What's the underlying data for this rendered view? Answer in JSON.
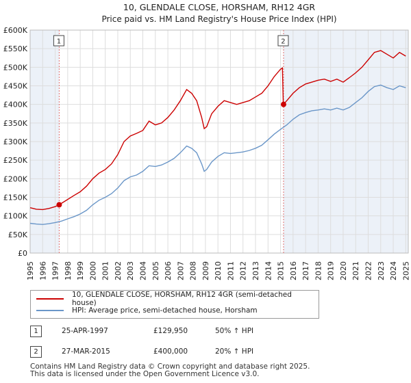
{
  "chart_data": {
    "type": "line",
    "title": "10, GLENDALE CLOSE, HORSHAM, RH12 4GR",
    "subtitle": "Price paid vs. HM Land Registry's House Price Index (HPI)",
    "xlim": [
      1995,
      2025.2
    ],
    "ylim": [
      0,
      600000
    ],
    "x_ticks": [
      "1995",
      "1996",
      "1997",
      "1998",
      "1999",
      "2000",
      "2001",
      "2002",
      "2003",
      "2004",
      "2005",
      "2006",
      "2007",
      "2008",
      "2009",
      "2010",
      "2011",
      "2012",
      "2013",
      "2014",
      "2015",
      "2016",
      "2017",
      "2018",
      "2019",
      "2020",
      "2021",
      "2022",
      "2023",
      "2024",
      "2025"
    ],
    "y_ticks": [
      {
        "value": 0,
        "label": "£0"
      },
      {
        "value": 50000,
        "label": "£50K"
      },
      {
        "value": 100000,
        "label": "£100K"
      },
      {
        "value": 150000,
        "label": "£150K"
      },
      {
        "value": 200000,
        "label": "£200K"
      },
      {
        "value": 250000,
        "label": "£250K"
      },
      {
        "value": 300000,
        "label": "£300K"
      },
      {
        "value": 350000,
        "label": "£350K"
      },
      {
        "value": 400000,
        "label": "£400K"
      },
      {
        "value": 450000,
        "label": "£450K"
      },
      {
        "value": 500000,
        "label": "£500K"
      },
      {
        "value": 550000,
        "label": "£550K"
      },
      {
        "value": 600000,
        "label": "£600K"
      }
    ],
    "grid": true,
    "series": [
      {
        "name": "10, GLENDALE CLOSE, HORSHAM, RH12 4GR (semi-detached house)",
        "color": "#cc0000",
        "points": [
          [
            1995.0,
            122000
          ],
          [
            1995.5,
            118000
          ],
          [
            1996.0,
            117000
          ],
          [
            1996.5,
            120000
          ],
          [
            1997.0,
            125000
          ],
          [
            1997.32,
            129950
          ],
          [
            1997.8,
            140000
          ],
          [
            1998.5,
            155000
          ],
          [
            1999.0,
            165000
          ],
          [
            1999.5,
            180000
          ],
          [
            2000.0,
            200000
          ],
          [
            2000.5,
            215000
          ],
          [
            2001.0,
            225000
          ],
          [
            2001.5,
            240000
          ],
          [
            2002.0,
            265000
          ],
          [
            2002.5,
            300000
          ],
          [
            2003.0,
            315000
          ],
          [
            2003.5,
            322000
          ],
          [
            2004.0,
            330000
          ],
          [
            2004.5,
            355000
          ],
          [
            2005.0,
            345000
          ],
          [
            2005.5,
            350000
          ],
          [
            2006.0,
            365000
          ],
          [
            2006.5,
            385000
          ],
          [
            2007.0,
            410000
          ],
          [
            2007.5,
            440000
          ],
          [
            2007.9,
            430000
          ],
          [
            2008.3,
            410000
          ],
          [
            2008.7,
            365000
          ],
          [
            2008.9,
            335000
          ],
          [
            2009.1,
            340000
          ],
          [
            2009.5,
            375000
          ],
          [
            2010.0,
            395000
          ],
          [
            2010.5,
            410000
          ],
          [
            2011.0,
            405000
          ],
          [
            2011.5,
            400000
          ],
          [
            2012.0,
            405000
          ],
          [
            2012.5,
            410000
          ],
          [
            2013.0,
            420000
          ],
          [
            2013.5,
            430000
          ],
          [
            2014.0,
            450000
          ],
          [
            2014.5,
            475000
          ],
          [
            2015.0,
            495000
          ],
          [
            2015.15,
            498000
          ],
          [
            2015.22,
            400000
          ],
          [
            2015.5,
            410000
          ],
          [
            2016.0,
            430000
          ],
          [
            2016.5,
            445000
          ],
          [
            2017.0,
            455000
          ],
          [
            2017.5,
            460000
          ],
          [
            2018.0,
            465000
          ],
          [
            2018.5,
            468000
          ],
          [
            2019.0,
            462000
          ],
          [
            2019.5,
            468000
          ],
          [
            2020.0,
            460000
          ],
          [
            2020.5,
            472000
          ],
          [
            2021.0,
            485000
          ],
          [
            2021.5,
            500000
          ],
          [
            2022.0,
            520000
          ],
          [
            2022.5,
            540000
          ],
          [
            2023.0,
            545000
          ],
          [
            2023.5,
            535000
          ],
          [
            2024.0,
            525000
          ],
          [
            2024.5,
            540000
          ],
          [
            2025.0,
            530000
          ]
        ]
      },
      {
        "name": "HPI: Average price, semi-detached house, Horsham",
        "color": "#6a96c8",
        "points": [
          [
            1995.0,
            80000
          ],
          [
            1995.5,
            78000
          ],
          [
            1996.0,
            77000
          ],
          [
            1996.5,
            79000
          ],
          [
            1997.0,
            82000
          ],
          [
            1997.5,
            86000
          ],
          [
            1998.0,
            92000
          ],
          [
            1998.5,
            98000
          ],
          [
            1999.0,
            105000
          ],
          [
            1999.5,
            115000
          ],
          [
            2000.0,
            130000
          ],
          [
            2000.5,
            142000
          ],
          [
            2001.0,
            150000
          ],
          [
            2001.5,
            160000
          ],
          [
            2002.0,
            175000
          ],
          [
            2002.5,
            195000
          ],
          [
            2003.0,
            205000
          ],
          [
            2003.5,
            210000
          ],
          [
            2004.0,
            220000
          ],
          [
            2004.5,
            235000
          ],
          [
            2005.0,
            233000
          ],
          [
            2005.5,
            237000
          ],
          [
            2006.0,
            245000
          ],
          [
            2006.5,
            255000
          ],
          [
            2007.0,
            270000
          ],
          [
            2007.5,
            288000
          ],
          [
            2007.9,
            282000
          ],
          [
            2008.3,
            270000
          ],
          [
            2008.7,
            240000
          ],
          [
            2008.9,
            220000
          ],
          [
            2009.1,
            225000
          ],
          [
            2009.5,
            245000
          ],
          [
            2010.0,
            260000
          ],
          [
            2010.5,
            270000
          ],
          [
            2011.0,
            268000
          ],
          [
            2011.5,
            270000
          ],
          [
            2012.0,
            272000
          ],
          [
            2012.5,
            276000
          ],
          [
            2013.0,
            282000
          ],
          [
            2013.5,
            290000
          ],
          [
            2014.0,
            305000
          ],
          [
            2014.5,
            320000
          ],
          [
            2015.0,
            333000
          ],
          [
            2015.5,
            345000
          ],
          [
            2016.0,
            360000
          ],
          [
            2016.5,
            372000
          ],
          [
            2017.0,
            378000
          ],
          [
            2017.5,
            383000
          ],
          [
            2018.0,
            385000
          ],
          [
            2018.5,
            388000
          ],
          [
            2019.0,
            385000
          ],
          [
            2019.5,
            390000
          ],
          [
            2020.0,
            385000
          ],
          [
            2020.5,
            392000
          ],
          [
            2021.0,
            405000
          ],
          [
            2021.5,
            418000
          ],
          [
            2022.0,
            435000
          ],
          [
            2022.5,
            448000
          ],
          [
            2023.0,
            452000
          ],
          [
            2023.5,
            445000
          ],
          [
            2024.0,
            440000
          ],
          [
            2024.5,
            450000
          ],
          [
            2025.0,
            445000
          ]
        ]
      }
    ],
    "markers": [
      {
        "label": "1",
        "x": 1997.32,
        "y": 129950
      },
      {
        "label": "2",
        "x": 2015.24,
        "y": 400000
      }
    ],
    "shaded_regions": [
      [
        1995,
        1997.32
      ],
      [
        2015.24,
        2025.2
      ]
    ],
    "legend_position": "bottom"
  },
  "transactions": [
    {
      "num": "1",
      "date": "25-APR-1997",
      "price": "£129,950",
      "hpi": "50% ↑ HPI"
    },
    {
      "num": "2",
      "date": "27-MAR-2015",
      "price": "£400,000",
      "hpi": "20% ↑ HPI"
    }
  ],
  "footer": {
    "line1": "Contains HM Land Registry data © Crown copyright and database right 2025.",
    "line2": "This data is licensed under the Open Government Licence v3.0."
  },
  "colors": {
    "price_line": "#cc0000",
    "hpi_line": "#6a96c8",
    "shade": "#dde6f3",
    "grid": "#dddddd"
  }
}
